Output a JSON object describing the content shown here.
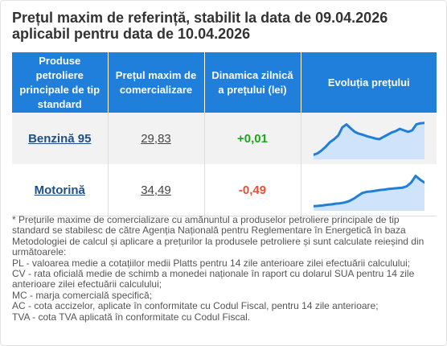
{
  "title": {
    "line1": "Prețul maxim de referință, stabilit la data de 09.04.2026",
    "line2": "aplicabil pentru data de 10.04.2026"
  },
  "table": {
    "headers": [
      "Produse petroliere principale de tip standard",
      "Prețul maxim de comercializare",
      "Dinamica zilnică a prețului (lei)",
      "Evoluția prețului"
    ],
    "rows": [
      {
        "product": "Benzină 95",
        "price": "29,83",
        "change": "+0,01",
        "change_sign": "positive",
        "trend": [
          0.08,
          0.12,
          0.2,
          0.3,
          0.42,
          0.5,
          0.6,
          0.82,
          0.9,
          0.8,
          0.7,
          0.65,
          0.62,
          0.58,
          0.55,
          0.52,
          0.5,
          0.56,
          0.62,
          0.68,
          0.72,
          0.78,
          0.74,
          0.7,
          0.74,
          0.9,
          0.93,
          0.94
        ]
      },
      {
        "product": "Motorină",
        "price": "34,49",
        "change": "-0,49",
        "change_sign": "negative",
        "trend": [
          0.08,
          0.09,
          0.1,
          0.12,
          0.13,
          0.15,
          0.16,
          0.18,
          0.22,
          0.28,
          0.36,
          0.44,
          0.47,
          0.48,
          0.5,
          0.52,
          0.53,
          0.55,
          0.56,
          0.57,
          0.58,
          0.62,
          0.72,
          0.9,
          0.8,
          0.72
        ]
      }
    ]
  },
  "colors": {
    "header_bg": "#1f7fdb",
    "spark_line": "#1f7fdb",
    "spark_fill": "#cfe4fb",
    "positive": "#1ea51e",
    "negative": "#e5503b"
  },
  "notes": [
    "* Prețurile maxime de comercializare cu amănuntul a produselor petroliere principale de tip standard se stabilesc de către Agenția Națională pentru Reglementare în Energetică în baza Metodologiei de calcul și aplicare a prețurilor la produsele petroliere și sunt calculate reieșind din următoarele:",
    "PL - valoarea medie a cotațiilor medii Platts pentru 14 zile anterioare zilei efectuării calculului;",
    "CV - rata oficială medie de schimb a monedei naționale în raport cu dolarul SUA pentru 14 zile anterioare zilei efectuării calculului;",
    "MC - marja comercială specifică;",
    "AC - cota accizelor, aplicate în conformitate cu Codul Fiscal, pentru 14 zile anterioare;",
    "TVA - cota TVA aplicată în conformitate cu Codul Fiscal."
  ]
}
